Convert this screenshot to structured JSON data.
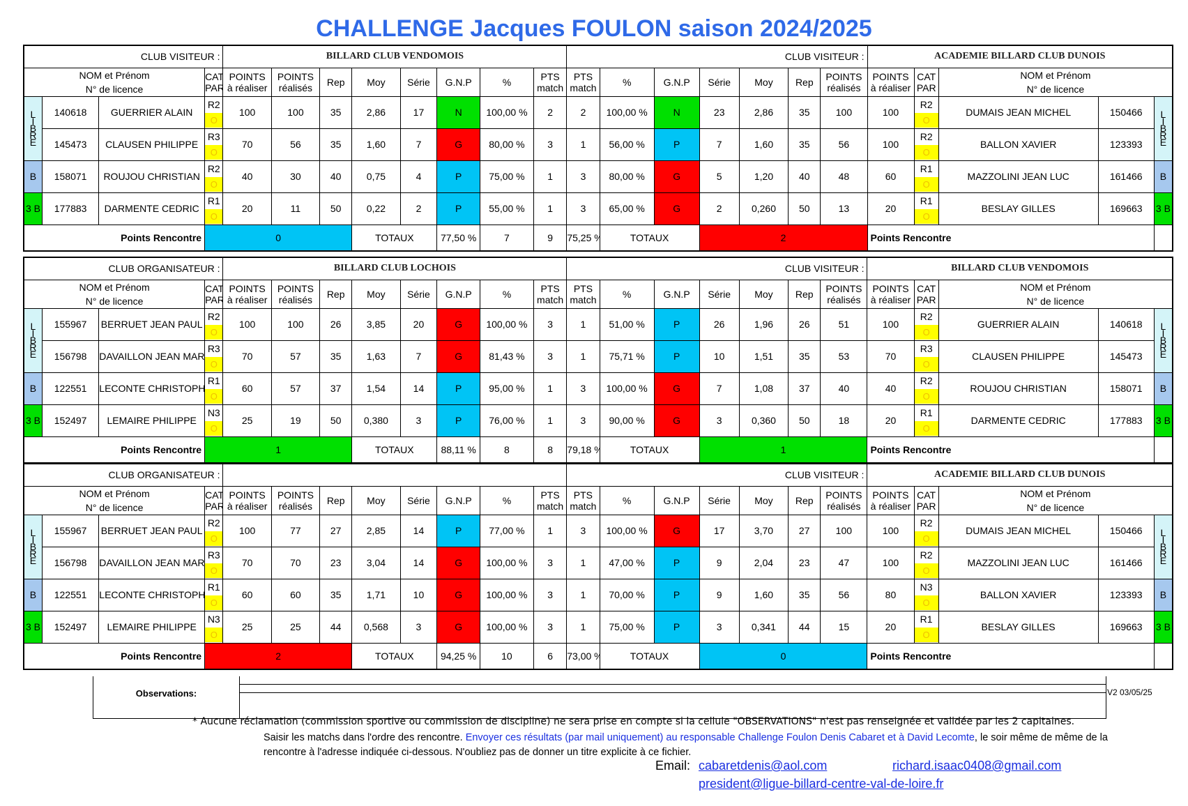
{
  "title": "CHALLENGE  Jacques FOULON saison 2024/2025",
  "headers": {
    "nom": [
      "NOM et Prénom",
      "N° de licence"
    ],
    "cat": [
      "CAT",
      "PAR"
    ],
    "points_a": [
      "POINTS",
      "à réaliser"
    ],
    "points_r": [
      "POINTS",
      "réalisés"
    ],
    "rep": "Rep",
    "moy": "Moy",
    "serie": "Série",
    "gnp": "G.N.P",
    "pct": "%",
    "pts": [
      "PTS",
      "match"
    ],
    "totaux": "TOTAUX",
    "points_rencontre": "Points Rencontre"
  },
  "colors": {
    "G": "#ff0000",
    "N": "#00e000",
    "P": "#00c4f5",
    "libre": "#d4f4f8",
    "bande": "#a6c8ee",
    "trois_bandes": "#00e000"
  },
  "blocks": [
    {
      "left_label": "CLUB VISITEUR :",
      "left_club": "BILLARD CLUB VENDOMOIS",
      "right_label": "CLUB VISITEUR :",
      "right_club": "ACADEMIE BILLARD CLUB DUNOIS",
      "rows": [
        {
          "lic": "140618",
          "name": "GUERRIER ALAIN",
          "cat": "R2",
          "o": "O",
          "pa": "100",
          "pr": "100",
          "rep": "35",
          "moy": "2,86",
          "serie": "17",
          "res": "N",
          "pct": "100,00 %",
          "pts": "2",
          "r_pts": "2",
          "r_pct": "100,00 %",
          "r_res": "N",
          "r_serie": "23",
          "r_moy": "2,86",
          "r_rep": "35",
          "r_pr": "100",
          "r_pa": "100",
          "r_cat": "R2",
          "r_o": "O",
          "r_name": "DUMAIS JEAN MICHEL",
          "r_lic": "150466"
        },
        {
          "lic": "145473",
          "name": "CLAUSEN PHILIPPE",
          "cat": "R3",
          "o": "O",
          "pa": "70",
          "pr": "56",
          "rep": "35",
          "moy": "1,60",
          "serie": "7",
          "res": "G",
          "pct": "80,00 %",
          "pts": "3",
          "r_pts": "1",
          "r_pct": "56,00 %",
          "r_res": "P",
          "r_serie": "7",
          "r_moy": "1,60",
          "r_rep": "35",
          "r_pr": "56",
          "r_pa": "100",
          "r_cat": "R2",
          "r_o": "O",
          "r_name": "BALLON XAVIER",
          "r_lic": "123393"
        },
        {
          "lic": "158071",
          "name": "ROUJOU CHRISTIAN",
          "cat": "R2",
          "o": "O",
          "pa": "40",
          "pr": "30",
          "rep": "40",
          "moy": "0,75",
          "serie": "4",
          "res": "P",
          "pct": "75,00 %",
          "pts": "1",
          "r_pts": "3",
          "r_pct": "80,00 %",
          "r_res": "G",
          "r_serie": "5",
          "r_moy": "1,20",
          "r_rep": "40",
          "r_pr": "48",
          "r_pa": "60",
          "r_cat": "R1",
          "r_o": "O",
          "r_name": "MAZZOLINI JEAN LUC",
          "r_lic": "161466"
        },
        {
          "lic": "177883",
          "name": "DARMENTE CEDRIC",
          "cat": "R1",
          "o": "O",
          "pa": "20",
          "pr": "11",
          "rep": "50",
          "moy": "0,22",
          "serie": "2",
          "res": "P",
          "pct": "55,00 %",
          "pts": "1",
          "r_pts": "3",
          "r_pct": "65,00 %",
          "r_res": "G",
          "r_serie": "2",
          "r_moy": "0,260",
          "r_rep": "50",
          "r_pr": "13",
          "r_pa": "20",
          "r_cat": "R1",
          "r_o": "O",
          "r_name": "BESLAY GILLES",
          "r_lic": "169663"
        }
      ],
      "left_points": "0",
      "left_color": "#00c4f5",
      "left_tot_pct": "77,50 %",
      "left_tot_pts": "7",
      "right_tot_pts": "9",
      "right_tot_pct": "75,25 %",
      "right_points": "2",
      "right_color": "#ff0000"
    },
    {
      "left_label": "CLUB ORGANISATEUR :",
      "left_club": "BILLARD CLUB LOCHOIS",
      "right_label": "CLUB VISITEUR :",
      "right_club": "BILLARD CLUB VENDOMOIS",
      "rows": [
        {
          "lic": "155967",
          "name": "BERRUET JEAN PAUL",
          "cat": "R2",
          "o": "O",
          "pa": "100",
          "pr": "100",
          "rep": "26",
          "moy": "3,85",
          "serie": "20",
          "res": "G",
          "pct": "100,00 %",
          "pts": "3",
          "r_pts": "1",
          "r_pct": "51,00 %",
          "r_res": "P",
          "r_serie": "26",
          "r_moy": "1,96",
          "r_rep": "26",
          "r_pr": "51",
          "r_pa": "100",
          "r_cat": "R2",
          "r_o": "O",
          "r_name": "GUERRIER ALAIN",
          "r_lic": "140618"
        },
        {
          "lic": "156798",
          "name": "DAVAILLON JEAN MARC",
          "cat": "R3",
          "o": "O",
          "pa": "70",
          "pr": "57",
          "rep": "35",
          "moy": "1,63",
          "serie": "7",
          "res": "G",
          "pct": "81,43 %",
          "pts": "3",
          "r_pts": "1",
          "r_pct": "75,71 %",
          "r_res": "P",
          "r_serie": "10",
          "r_moy": "1,51",
          "r_rep": "35",
          "r_pr": "53",
          "r_pa": "70",
          "r_cat": "R3",
          "r_o": "O",
          "r_name": "CLAUSEN PHILIPPE",
          "r_lic": "145473"
        },
        {
          "lic": "122551",
          "name": "LECONTE CHRISTOPHE",
          "cat": "R1",
          "o": "O",
          "pa": "60",
          "pr": "57",
          "rep": "37",
          "moy": "1,54",
          "serie": "14",
          "res": "P",
          "pct": "95,00 %",
          "pts": "1",
          "r_pts": "3",
          "r_pct": "100,00 %",
          "r_res": "G",
          "r_serie": "7",
          "r_moy": "1,08",
          "r_rep": "37",
          "r_pr": "40",
          "r_pa": "40",
          "r_cat": "R2",
          "r_o": "O",
          "r_name": "ROUJOU CHRISTIAN",
          "r_lic": "158071"
        },
        {
          "lic": "152497",
          "name": "LEMAIRE PHILIPPE",
          "cat": "N3",
          "o": "O",
          "pa": "25",
          "pr": "19",
          "rep": "50",
          "moy": "0,380",
          "serie": "3",
          "res": "P",
          "pct": "76,00 %",
          "pts": "1",
          "r_pts": "3",
          "r_pct": "90,00 %",
          "r_res": "G",
          "r_serie": "3",
          "r_moy": "0,360",
          "r_rep": "50",
          "r_pr": "18",
          "r_pa": "20",
          "r_cat": "R1",
          "r_o": "O",
          "r_name": "DARMENTE CEDRIC",
          "r_lic": "177883"
        }
      ],
      "left_points": "1",
      "left_color": "#00e000",
      "left_tot_pct": "88,11 %",
      "left_tot_pts": "8",
      "right_tot_pts": "8",
      "right_tot_pct": "79,18 %",
      "right_points": "1",
      "right_color": "#00e000"
    },
    {
      "left_label": "CLUB ORGANISATEUR :",
      "left_club": "",
      "right_label": "CLUB VISITEUR :",
      "right_club": "ACADEMIE BILLARD CLUB DUNOIS",
      "rows": [
        {
          "lic": "155967",
          "name": "BERRUET JEAN PAUL",
          "cat": "R2",
          "o": "O",
          "pa": "100",
          "pr": "77",
          "rep": "27",
          "moy": "2,85",
          "serie": "14",
          "res": "P",
          "pct": "77,00 %",
          "pts": "1",
          "r_pts": "3",
          "r_pct": "100,00 %",
          "r_res": "G",
          "r_serie": "17",
          "r_moy": "3,70",
          "r_rep": "27",
          "r_pr": "100",
          "r_pa": "100",
          "r_cat": "R2",
          "r_o": "O",
          "r_name": "DUMAIS JEAN MICHEL",
          "r_lic": "150466"
        },
        {
          "lic": "156798",
          "name": "DAVAILLON JEAN MARC",
          "cat": "R3",
          "o": "O",
          "pa": "70",
          "pr": "70",
          "rep": "23",
          "moy": "3,04",
          "serie": "14",
          "res": "G",
          "pct": "100,00 %",
          "pts": "3",
          "r_pts": "1",
          "r_pct": "47,00 %",
          "r_res": "P",
          "r_serie": "9",
          "r_moy": "2,04",
          "r_rep": "23",
          "r_pr": "47",
          "r_pa": "100",
          "r_cat": "R2",
          "r_o": "O",
          "r_name": "MAZZOLINI JEAN LUC",
          "r_lic": "161466"
        },
        {
          "lic": "122551",
          "name": "LECONTE CHRISTOPHE",
          "cat": "R1",
          "o": "O",
          "pa": "60",
          "pr": "60",
          "rep": "35",
          "moy": "1,71",
          "serie": "10",
          "res": "G",
          "pct": "100,00 %",
          "pts": "3",
          "r_pts": "1",
          "r_pct": "70,00 %",
          "r_res": "P",
          "r_serie": "9",
          "r_moy": "1,60",
          "r_rep": "35",
          "r_pr": "56",
          "r_pa": "80",
          "r_cat": "N3",
          "r_o": "O",
          "r_name": "BALLON XAVIER",
          "r_lic": "123393"
        },
        {
          "lic": "152497",
          "name": "LEMAIRE PHILIPPE",
          "cat": "N3",
          "o": "O",
          "pa": "25",
          "pr": "25",
          "rep": "44",
          "moy": "0,568",
          "serie": "3",
          "res": "G",
          "pct": "100,00 %",
          "pts": "3",
          "r_pts": "1",
          "r_pct": "75,00 %",
          "r_res": "P",
          "r_serie": "3",
          "r_moy": "0,341",
          "r_rep": "44",
          "r_pr": "15",
          "r_pa": "20",
          "r_cat": "R1",
          "r_o": "O",
          "r_name": "BESLAY GILLES",
          "r_lic": "169663"
        }
      ],
      "left_points": "2",
      "left_color": "#ff0000",
      "left_tot_pct": "94,25 %",
      "left_tot_pts": "10",
      "right_tot_pts": "6",
      "right_tot_pct": "73,00 %",
      "right_points": "0",
      "right_color": "#00c4f5"
    }
  ],
  "side_labels": {
    "libre": [
      "L",
      "I",
      "B",
      "R",
      "E"
    ],
    "bande": "B",
    "trois_bandes": "3 B",
    "trois_bandes_split": [
      "3",
      "B"
    ]
  },
  "observations_label": "Observations:",
  "version": "V2 03/05/25",
  "note1": "* Aucune réclamation (commission sportive ou commission de discipline) ne sera prise en compte si la cellule \"OBSERVATIONS\" n'est pas renseignée et validée par les 2 capitaines.",
  "note2_a": "Saisir les matchs dans l'ordre des rencontre. ",
  "note2_b": "Envoyer ces résultats (par mail uniquement) au responsable Challenge Foulon Denis Cabaret et à David Lecomte",
  "note2_c": ", le soir même de même de la rencontre  à l'adresse indiquée ci-dessous. N'oubliez pas de donner un titre explicite à ce fichier.",
  "email_label": "Email:",
  "emails": [
    "cabaretdenis@aol.com",
    "richard.isaac0408@gmail.com",
    "president@ligue-billard-centre-val-de-loire.fr"
  ]
}
